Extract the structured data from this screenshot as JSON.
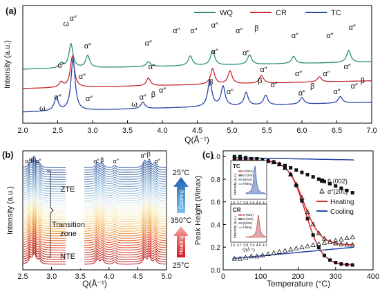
{
  "panel_a": {
    "label": "(a)",
    "xlabel": "Q(Å⁻¹)",
    "ylabel": "Intensity (a.u.)",
    "ticks": [
      "2.0",
      "2.5",
      "3.0",
      "3.5",
      "4.0",
      "4.5",
      "5.0",
      "5.5",
      "6.0",
      "6.5",
      "7.0"
    ],
    "legend": [
      "WQ",
      "CR",
      "TC"
    ],
    "colors": {
      "WQ": "#2a8c7a",
      "CR": "#c8282a",
      "TC": "#2746a8"
    },
    "annotations": [
      "α″",
      "β",
      "ω"
    ]
  },
  "panel_b": {
    "label": "(b)",
    "xlabel": "Q(Å⁻¹)",
    "ylabel": "Intensity (a.u.)",
    "ticks": [
      "2.5",
      "3.0",
      "3.5",
      "4.0",
      "4.5",
      "5.0"
    ],
    "peak_labels": [
      "α″",
      "β",
      "α″",
      "α″",
      "β",
      "α″",
      "α″",
      "β",
      "α″"
    ],
    "zte": "ZTE",
    "transition_line1": "Transition",
    "transition_line2": "zone",
    "nte": "NTE",
    "temp_top": "25°C",
    "temp_mid": "350°C",
    "temp_bottom": "25°C",
    "cooling": "Cooling",
    "heating": "Heating"
  },
  "panel_c": {
    "label": "(c)",
    "xlabel": "Temperature (°C)",
    "ylabel": "Peak Height (I/Imax)",
    "xticks": [
      "0",
      "100",
      "200",
      "300",
      "400"
    ],
    "yticks": [
      "0.0",
      "0.2",
      "0.4",
      "0.6",
      "0.8",
      "1.0"
    ],
    "legend": {
      "beta": "β {002}",
      "alpha": "α″{200}",
      "heating": "Heating",
      "cooling": "Cooling"
    },
    "inset_tc": {
      "title": "TC",
      "ylabel": "Intensity (a.u.)",
      "items": [
        "α″(022)",
        "α″(200)",
        "β(002)",
        "Fitting"
      ],
      "ticks": [
        "3.6",
        "3.7",
        "3.8",
        "3.9",
        "4.0",
        "4.1"
      ]
    },
    "inset_cr": {
      "title": "CR",
      "ylabel": "Intensity (a.u.)",
      "items": [
        "α″(022)",
        "α″(200)",
        "β(002)",
        "Fitting"
      ],
      "ticks": [
        "3.6",
        "3.7",
        "3.8",
        "3.9",
        "4.0",
        "4.1"
      ],
      "xlabel": "Q(Å⁻¹)"
    }
  },
  "chart_data": [
    {
      "type": "line",
      "panel": "a",
      "xlabel": "Q(Å⁻¹)",
      "ylabel": "Intensity (a.u.)",
      "xlim": [
        2.0,
        7.0
      ],
      "series": [
        {
          "name": "WQ",
          "peaks": [
            {
              "x": 2.55,
              "h": 0.1
            },
            {
              "x": 2.69,
              "h": 0.5
            },
            {
              "x": 2.93,
              "h": 0.25
            },
            {
              "x": 3.8,
              "h": 0.1
            },
            {
              "x": 4.4,
              "h": 0.2
            },
            {
              "x": 4.72,
              "h": 0.3
            },
            {
              "x": 5.25,
              "h": 0.2
            },
            {
              "x": 5.88,
              "h": 0.15
            },
            {
              "x": 6.67,
              "h": 0.25
            }
          ]
        },
        {
          "name": "CR",
          "peaks": [
            {
              "x": 2.55,
              "h": 0.1
            },
            {
              "x": 2.71,
              "h": 0.6
            },
            {
              "x": 3.8,
              "h": 0.15
            },
            {
              "x": 4.72,
              "h": 0.3
            },
            {
              "x": 4.97,
              "h": 0.25
            },
            {
              "x": 5.42,
              "h": 0.15
            },
            {
              "x": 6.25,
              "h": 0.1
            }
          ]
        },
        {
          "name": "TC",
          "peaks": [
            {
              "x": 2.48,
              "h": 0.2
            },
            {
              "x": 2.72,
              "h": 0.8
            },
            {
              "x": 3.72,
              "h": 0.1
            },
            {
              "x": 4.68,
              "h": 0.4
            },
            {
              "x": 4.87,
              "h": 0.3
            },
            {
              "x": 5.2,
              "h": 0.2
            },
            {
              "x": 5.48,
              "h": 0.15
            },
            {
              "x": 6.0,
              "h": 0.1
            },
            {
              "x": 6.55,
              "h": 0.1
            }
          ]
        }
      ]
    },
    {
      "type": "line",
      "panel": "b",
      "xlabel": "Q(Å⁻¹)",
      "ylabel": "Intensity (a.u.)",
      "xlim": [
        2.5,
        5.0
      ],
      "series_count": 42,
      "peaks": [
        {
          "x": 2.63,
          "h": 0.4
        },
        {
          "x": 2.7,
          "h": 0.7
        },
        {
          "x": 2.78,
          "h": 0.3
        },
        {
          "x": 3.8,
          "h": 0.35
        },
        {
          "x": 3.88,
          "h": 0.3
        },
        {
          "x": 4.1,
          "h": 0.15
        },
        {
          "x": 4.62,
          "h": 0.45
        },
        {
          "x": 4.7,
          "h": 0.5
        },
        {
          "x": 4.8,
          "h": 0.3
        }
      ]
    },
    {
      "type": "scatter",
      "panel": "c",
      "xlabel": "Temperature (°C)",
      "ylabel": "Peak Height (I/Imax)",
      "xlim": [
        0,
        400
      ],
      "ylim": [
        0,
        1.05
      ],
      "series": [
        {
          "name": "β {002}",
          "marker": "square",
          "x": [
            30,
            45,
            60,
            75,
            90,
            105,
            120,
            135,
            150,
            165,
            180,
            195,
            210,
            225,
            240,
            255,
            270,
            285,
            300,
            315,
            330,
            345
          ],
          "y": [
            1.0,
            1.0,
            0.99,
            0.98,
            0.98,
            0.97,
            0.96,
            0.95,
            0.93,
            0.92,
            0.9,
            0.88,
            0.86,
            0.84,
            0.82,
            0.8,
            0.78,
            0.76,
            0.74,
            0.72,
            0.7,
            0.68
          ]
        },
        {
          "name": "α″{200}",
          "marker": "triangle",
          "x": [
            30,
            45,
            60,
            75,
            90,
            105,
            120,
            135,
            150,
            165,
            180,
            195,
            210,
            225,
            240,
            255,
            270,
            285,
            300,
            315,
            330,
            345
          ],
          "y": [
            0.1,
            0.1,
            0.11,
            0.12,
            0.12,
            0.13,
            0.14,
            0.15,
            0.16,
            0.17,
            0.18,
            0.19,
            0.2,
            0.21,
            0.22,
            0.23,
            0.24,
            0.25,
            0.26,
            0.27,
            0.28,
            0.29
          ]
        }
      ]
    }
  ]
}
